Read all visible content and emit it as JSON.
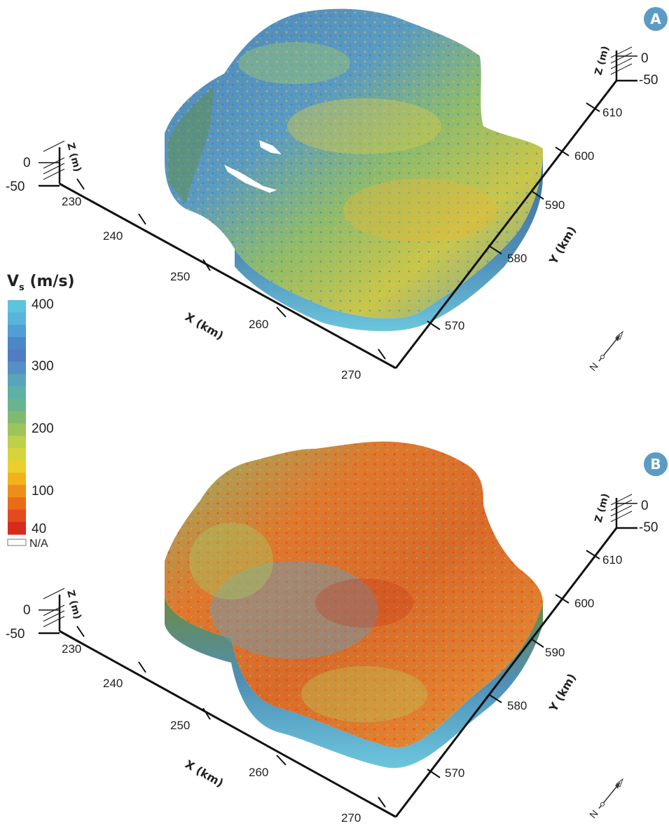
{
  "panels": [
    {
      "label": "A",
      "x_axis": {
        "title": "X (km)",
        "ticks": [
          "230",
          "240",
          "250",
          "260",
          "270"
        ]
      },
      "y_axis": {
        "title": "Y (km)",
        "ticks": [
          "570",
          "580",
          "590",
          "600",
          "610"
        ]
      },
      "z_axis_left": {
        "title": "Z (m)",
        "ticks": [
          "0",
          "-50"
        ]
      },
      "z_axis_right": {
        "title": "Z (m)",
        "ticks": [
          "0",
          "-50"
        ]
      },
      "north_label": "N",
      "dominant_colors": [
        "#4a8fbf",
        "#6bb0d6",
        "#8fc271",
        "#d9cf3f",
        "#e7a83a"
      ]
    },
    {
      "label": "B",
      "x_axis": {
        "title": "X (km)",
        "ticks": [
          "230",
          "240",
          "250",
          "260",
          "270"
        ]
      },
      "y_axis": {
        "title": "Y (km)",
        "ticks": [
          "570",
          "580",
          "590",
          "600",
          "610"
        ]
      },
      "z_axis_left": {
        "title": "Z (m)",
        "ticks": [
          "0",
          "-50"
        ]
      },
      "z_axis_right": {
        "title": "Z (m)",
        "ticks": [
          "0",
          "-50"
        ]
      },
      "north_label": "N",
      "dominant_colors": [
        "#e27a2a",
        "#d65a20",
        "#5fa1c4",
        "#a9c35a",
        "#c9d145"
      ]
    }
  ],
  "colorbar": {
    "title": "V",
    "title_subscript": "s",
    "title_unit": " (m/s)",
    "tick_labels": [
      "400",
      "300",
      "200",
      "100",
      "40"
    ],
    "na_label": "N/A",
    "colors": [
      "#5cc4dc",
      "#59b4dc",
      "#4f9fd4",
      "#4d86c8",
      "#4f7cc2",
      "#5590c4",
      "#5aa4bb",
      "#5fb0a6",
      "#69b48e",
      "#80ba70",
      "#9ec45a",
      "#bcd04a",
      "#d6d43c",
      "#eccf2c",
      "#f2b21e",
      "#ee8e1a",
      "#e96c18",
      "#e34a1c",
      "#d92a1e"
    ]
  },
  "badge_color": "#5b9bc6"
}
